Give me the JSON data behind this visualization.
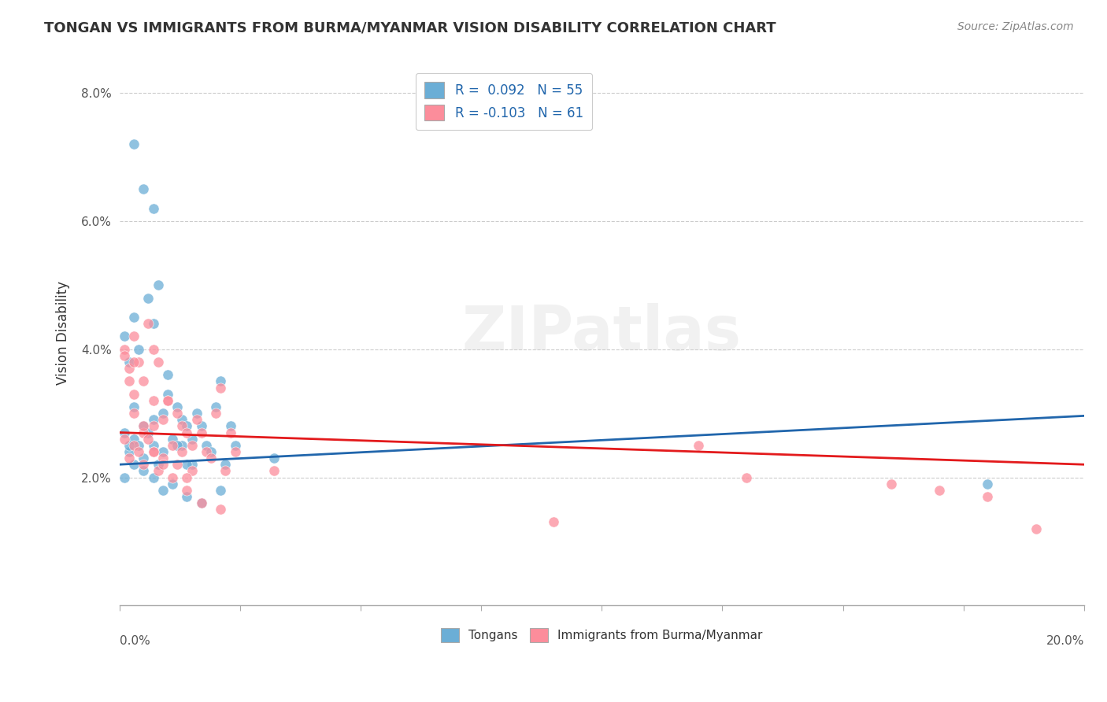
{
  "title": "TONGAN VS IMMIGRANTS FROM BURMA/MYANMAR VISION DISABILITY CORRELATION CHART",
  "source": "Source: ZipAtlas.com",
  "ylabel": "Vision Disability",
  "xmin": 0.0,
  "xmax": 0.2,
  "ymin": 0.0,
  "ymax": 0.085,
  "yticks": [
    0.02,
    0.04,
    0.06,
    0.08
  ],
  "ytick_labels": [
    "2.0%",
    "4.0%",
    "6.0%",
    "8.0%"
  ],
  "xticks": [
    0.0,
    0.025,
    0.05,
    0.075,
    0.1,
    0.125,
    0.15,
    0.175,
    0.2
  ],
  "legend_blue_label": "R =  0.092   N = 55",
  "legend_pink_label": "R = -0.103   N = 61",
  "legend_tongans": "Tongans",
  "legend_burma": "Immigrants from Burma/Myanmar",
  "blue_color": "#6baed6",
  "pink_color": "#fc8d9b",
  "blue_line_color": "#2166ac",
  "pink_line_color": "#e31a1c",
  "watermark": "ZIPatlas",
  "blue_scatter_x": [
    0.001,
    0.002,
    0.003,
    0.003,
    0.004,
    0.005,
    0.005,
    0.006,
    0.007,
    0.007,
    0.008,
    0.009,
    0.009,
    0.01,
    0.011,
    0.012,
    0.013,
    0.013,
    0.014,
    0.015,
    0.015,
    0.016,
    0.017,
    0.018,
    0.019,
    0.02,
    0.021,
    0.022,
    0.023,
    0.024,
    0.001,
    0.002,
    0.003,
    0.004,
    0.006,
    0.007,
    0.008,
    0.01,
    0.012,
    0.014,
    0.001,
    0.002,
    0.003,
    0.005,
    0.007,
    0.009,
    0.011,
    0.014,
    0.017,
    0.021,
    0.003,
    0.005,
    0.007,
    0.18,
    0.032
  ],
  "blue_scatter_y": [
    0.027,
    0.024,
    0.031,
    0.026,
    0.025,
    0.028,
    0.023,
    0.027,
    0.025,
    0.029,
    0.022,
    0.03,
    0.024,
    0.033,
    0.026,
    0.031,
    0.029,
    0.025,
    0.028,
    0.026,
    0.022,
    0.03,
    0.028,
    0.025,
    0.024,
    0.031,
    0.035,
    0.022,
    0.028,
    0.025,
    0.042,
    0.038,
    0.045,
    0.04,
    0.048,
    0.044,
    0.05,
    0.036,
    0.025,
    0.022,
    0.02,
    0.025,
    0.022,
    0.021,
    0.02,
    0.018,
    0.019,
    0.017,
    0.016,
    0.018,
    0.072,
    0.065,
    0.062,
    0.019,
    0.023
  ],
  "pink_scatter_x": [
    0.001,
    0.002,
    0.003,
    0.003,
    0.004,
    0.005,
    0.005,
    0.006,
    0.007,
    0.007,
    0.008,
    0.009,
    0.009,
    0.01,
    0.011,
    0.012,
    0.013,
    0.013,
    0.014,
    0.015,
    0.015,
    0.016,
    0.017,
    0.018,
    0.019,
    0.02,
    0.021,
    0.022,
    0.023,
    0.024,
    0.001,
    0.002,
    0.003,
    0.004,
    0.006,
    0.007,
    0.008,
    0.01,
    0.012,
    0.014,
    0.001,
    0.002,
    0.003,
    0.005,
    0.007,
    0.009,
    0.011,
    0.014,
    0.017,
    0.021,
    0.003,
    0.005,
    0.007,
    0.09,
    0.12,
    0.13,
    0.16,
    0.17,
    0.18,
    0.19,
    0.032
  ],
  "pink_scatter_y": [
    0.026,
    0.023,
    0.03,
    0.025,
    0.024,
    0.027,
    0.022,
    0.026,
    0.024,
    0.028,
    0.021,
    0.029,
    0.023,
    0.032,
    0.025,
    0.03,
    0.028,
    0.024,
    0.027,
    0.025,
    0.021,
    0.029,
    0.027,
    0.024,
    0.023,
    0.03,
    0.034,
    0.021,
    0.027,
    0.024,
    0.04,
    0.037,
    0.042,
    0.038,
    0.044,
    0.04,
    0.038,
    0.032,
    0.022,
    0.02,
    0.039,
    0.035,
    0.033,
    0.028,
    0.024,
    0.022,
    0.02,
    0.018,
    0.016,
    0.015,
    0.038,
    0.035,
    0.032,
    0.013,
    0.025,
    0.02,
    0.019,
    0.018,
    0.017,
    0.012,
    0.021
  ]
}
